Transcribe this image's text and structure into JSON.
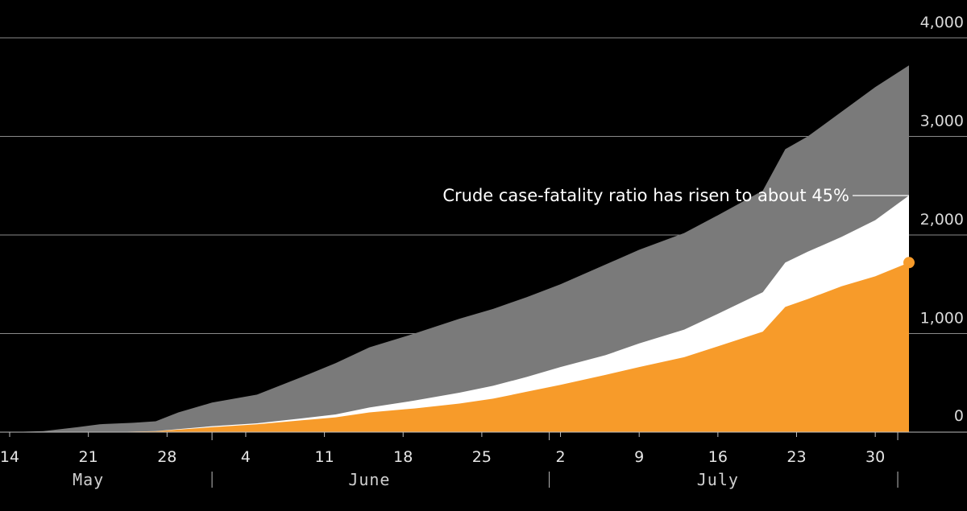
{
  "chart_data": {
    "type": "area",
    "stacked": false,
    "background": "#000000",
    "y_axis": {
      "position": "right",
      "ticks": [
        0,
        1000,
        2000,
        3000,
        4000
      ],
      "tick_labels": [
        "0",
        "1,000",
        "2,000",
        "3,000",
        "4,000"
      ],
      "ylim": [
        0,
        4000
      ],
      "grid": true
    },
    "x_axis": {
      "xlim": [
        "2014-05-14",
        "2014-08-06"
      ],
      "ticks": [
        "2014-05-14",
        "2014-05-21",
        "2014-05-28",
        "2014-06-04",
        "2014-06-11",
        "2014-06-18",
        "2014-06-25",
        "2014-07-02",
        "2014-07-09",
        "2014-07-16",
        "2014-07-23",
        "2014-07-30"
      ],
      "tick_labels": [
        "14",
        "21",
        "28",
        "4",
        "11",
        "18",
        "25",
        "2",
        "9",
        "16",
        "23",
        "30"
      ],
      "months": [
        {
          "label": "May",
          "center": "2014-05-21"
        },
        {
          "label": "June",
          "center": "2014-06-15"
        },
        {
          "label": "July",
          "center": "2014-07-16"
        }
      ],
      "month_separators": [
        "2014-06-01",
        "2014-07-01",
        "2014-08-01"
      ]
    },
    "x": [
      "2014-05-14",
      "2014-05-17",
      "2014-05-20",
      "2014-05-22",
      "2014-05-25",
      "2014-05-27",
      "2014-05-29",
      "2014-06-01",
      "2014-06-05",
      "2014-06-09",
      "2014-06-12",
      "2014-06-15",
      "2014-06-19",
      "2014-06-23",
      "2014-06-26",
      "2014-06-29",
      "2014-07-02",
      "2014-07-06",
      "2014-07-09",
      "2014-07-13",
      "2014-07-16",
      "2014-07-20",
      "2014-07-22",
      "2014-07-24",
      "2014-07-27",
      "2014-07-30",
      "2014-08-02"
    ],
    "series": [
      {
        "color": "#7a7a7a",
        "values": [
          0,
          10,
          50,
          80,
          95,
          110,
          200,
          300,
          380,
          560,
          700,
          860,
          1000,
          1150,
          1250,
          1370,
          1500,
          1700,
          1850,
          2020,
          2200,
          2450,
          2870,
          3000,
          3250,
          3500,
          3720
        ]
      },
      {
        "color": "#ffffff",
        "values": [
          0,
          0,
          0,
          0,
          5,
          10,
          30,
          60,
          90,
          140,
          180,
          250,
          320,
          400,
          470,
          560,
          660,
          780,
          900,
          1040,
          1200,
          1420,
          1720,
          1830,
          1980,
          2150,
          2400
        ]
      },
      {
        "color": "#f79b2a",
        "values": [
          0,
          0,
          0,
          0,
          5,
          8,
          25,
          50,
          80,
          120,
          150,
          200,
          240,
          290,
          340,
          410,
          480,
          580,
          660,
          760,
          870,
          1020,
          1270,
          1350,
          1480,
          1580,
          1720
        ]
      }
    ],
    "annotation": {
      "text": "Crude case-fatality ratio has risen to about 45%",
      "date": "2014-08-02",
      "value": 2400
    },
    "end_marker": {
      "date": "2014-08-02",
      "value": 1720,
      "color": "#f79b2a"
    }
  }
}
